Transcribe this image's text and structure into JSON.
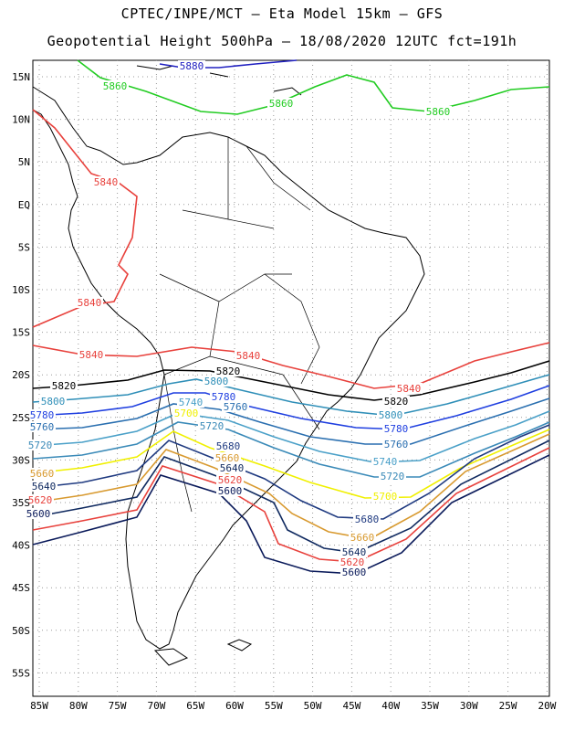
{
  "header": {
    "line1": "CPTEC/INPE/MCT –  Eta Model 15km – GFS",
    "line2": "Geopotential Height 500hPa – 18/08/2020 12UTC fct=191h"
  },
  "axes": {
    "lon_ticks": [
      "85W",
      "80W",
      "75W",
      "70W",
      "65W",
      "60W",
      "55W",
      "50W",
      "45W",
      "40W",
      "35W",
      "30W",
      "25W",
      "20W"
    ],
    "lat_ticks": [
      "15N",
      "10N",
      "5N",
      "EQ",
      "5S",
      "10S",
      "15S",
      "20S",
      "25S",
      "30S",
      "35S",
      "40S",
      "45S",
      "50S",
      "55S"
    ]
  },
  "contours": [
    {
      "value": "5880",
      "color": "#2020c0"
    },
    {
      "value": "5860",
      "color": "#22cc22"
    },
    {
      "value": "5840",
      "color": "#e8413c"
    },
    {
      "value": "5820",
      "color": "#000000"
    },
    {
      "value": "5800",
      "color": "#2f8fb8"
    },
    {
      "value": "5780",
      "color": "#1f3fe0"
    },
    {
      "value": "5760",
      "color": "#2a6fb0"
    },
    {
      "value": "5740",
      "color": "#4aa0c8"
    },
    {
      "value": "5720",
      "color": "#3a8ab8"
    },
    {
      "value": "5700",
      "color": "#f0f000"
    },
    {
      "value": "5680",
      "color": "#1f3a80"
    },
    {
      "value": "5660",
      "color": "#d89a30"
    },
    {
      "value": "5640",
      "color": "#102a60"
    },
    {
      "value": "5620",
      "color": "#e8413c"
    },
    {
      "value": "5600",
      "color": "#0a1a5a"
    }
  ]
}
